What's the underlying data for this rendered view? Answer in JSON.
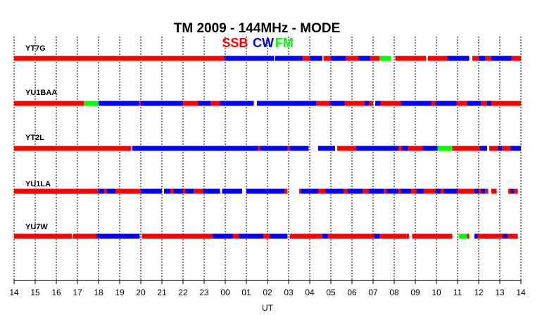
{
  "title": "TM 2009 - 144MHz - MODE",
  "legend": {
    "items": [
      {
        "label": "SSB",
        "color": "#ff0000"
      },
      {
        "label": "CW",
        "color": "#0000ff"
      },
      {
        "label": "FM",
        "color": "#00ff00"
      }
    ]
  },
  "chart_data": {
    "type": "timeline",
    "title": "TM 2009 - 144MHz - MODE",
    "xlabel": "UT",
    "x_ticks": [
      "14",
      "15",
      "16",
      "17",
      "18",
      "19",
      "20",
      "21",
      "22",
      "23",
      "00",
      "01",
      "02",
      "03",
      "04",
      "05",
      "06",
      "07",
      "08",
      "09",
      "10",
      "11",
      "12",
      "13",
      "14"
    ],
    "xlim_hours": [
      0,
      24
    ],
    "grid": "vertical-dashed",
    "legend_position": "top-center",
    "mode_colors": {
      "SSB": "#ff0000",
      "CW": "#0000ff",
      "FM": "#00ff00"
    },
    "stations": [
      {
        "name": "YT7G",
        "segments": [
          {
            "mode": "SSB",
            "start": 0.0,
            "end": 9.95
          },
          {
            "mode": "CW",
            "start": 9.95,
            "end": 12.3
          },
          {
            "mode": "CW",
            "start": 12.35,
            "end": 13.65
          },
          {
            "mode": "SSB",
            "start": 13.65,
            "end": 14.0
          },
          {
            "mode": "CW",
            "start": 14.0,
            "end": 14.6
          },
          {
            "mode": "SSB",
            "start": 14.65,
            "end": 15.0
          },
          {
            "mode": "CW",
            "start": 15.0,
            "end": 15.7
          },
          {
            "mode": "SSB",
            "start": 15.7,
            "end": 16.3
          },
          {
            "mode": "CW",
            "start": 16.3,
            "end": 16.85
          },
          {
            "mode": "SSB",
            "start": 16.85,
            "end": 17.3
          },
          {
            "mode": "FM",
            "start": 17.3,
            "end": 17.85
          },
          {
            "mode": "SSB",
            "start": 18.05,
            "end": 19.5
          },
          {
            "mode": "SSB",
            "start": 19.6,
            "end": 20.5
          },
          {
            "mode": "CW",
            "start": 20.5,
            "end": 21.55
          },
          {
            "mode": "SSB",
            "start": 21.7,
            "end": 22.0
          },
          {
            "mode": "CW",
            "start": 22.0,
            "end": 22.3
          },
          {
            "mode": "SSB",
            "start": 22.3,
            "end": 22.6
          },
          {
            "mode": "CW",
            "start": 22.6,
            "end": 23.55
          },
          {
            "mode": "SSB",
            "start": 23.55,
            "end": 24.0
          }
        ]
      },
      {
        "name": "YU1BAA",
        "segments": [
          {
            "mode": "SSB",
            "start": 0.0,
            "end": 3.3
          },
          {
            "mode": "FM",
            "start": 3.3,
            "end": 4.0
          },
          {
            "mode": "CW",
            "start": 4.0,
            "end": 5.9
          },
          {
            "mode": "SSB",
            "start": 5.9,
            "end": 6.0
          },
          {
            "mode": "CW",
            "start": 6.0,
            "end": 8.0
          },
          {
            "mode": "SSB",
            "start": 8.0,
            "end": 8.7
          },
          {
            "mode": "CW",
            "start": 8.7,
            "end": 9.3
          },
          {
            "mode": "SSB",
            "start": 9.3,
            "end": 9.75
          },
          {
            "mode": "CW",
            "start": 9.75,
            "end": 11.35
          },
          {
            "mode": "CW",
            "start": 11.5,
            "end": 14.3
          },
          {
            "mode": "SSB",
            "start": 14.3,
            "end": 14.95
          },
          {
            "mode": "CW",
            "start": 14.95,
            "end": 15.65
          },
          {
            "mode": "SSB",
            "start": 15.65,
            "end": 16.6
          },
          {
            "mode": "CW",
            "start": 16.6,
            "end": 16.8
          },
          {
            "mode": "SSB",
            "start": 16.8,
            "end": 17.0
          },
          {
            "mode": "CW",
            "start": 17.1,
            "end": 17.35
          },
          {
            "mode": "SSB",
            "start": 17.35,
            "end": 18.3
          },
          {
            "mode": "CW",
            "start": 18.3,
            "end": 19.75
          },
          {
            "mode": "SSB",
            "start": 19.75,
            "end": 19.95
          },
          {
            "mode": "CW",
            "start": 19.95,
            "end": 20.95
          },
          {
            "mode": "SSB",
            "start": 20.95,
            "end": 21.45
          },
          {
            "mode": "CW",
            "start": 21.45,
            "end": 22.1
          },
          {
            "mode": "SSB",
            "start": 22.1,
            "end": 22.4
          },
          {
            "mode": "CW",
            "start": 22.4,
            "end": 22.6
          },
          {
            "mode": "SSB",
            "start": 22.6,
            "end": 24.0
          }
        ]
      },
      {
        "name": "YT2L",
        "segments": [
          {
            "mode": "SSB",
            "start": 0.0,
            "end": 5.55
          },
          {
            "mode": "CW",
            "start": 5.6,
            "end": 11.55
          },
          {
            "mode": "SSB",
            "start": 11.55,
            "end": 11.65
          },
          {
            "mode": "CW",
            "start": 11.65,
            "end": 12.95
          },
          {
            "mode": "SSB",
            "start": 12.95,
            "end": 13.05
          },
          {
            "mode": "CW",
            "start": 13.05,
            "end": 13.95
          },
          {
            "mode": "CW",
            "start": 14.4,
            "end": 15.2
          },
          {
            "mode": "SSB",
            "start": 15.3,
            "end": 16.2
          },
          {
            "mode": "CW",
            "start": 16.2,
            "end": 18.2
          },
          {
            "mode": "SSB",
            "start": 18.2,
            "end": 18.35
          },
          {
            "mode": "CW",
            "start": 18.35,
            "end": 18.65
          },
          {
            "mode": "SSB",
            "start": 18.65,
            "end": 19.35
          },
          {
            "mode": "CW",
            "start": 19.35,
            "end": 20.05
          },
          {
            "mode": "FM",
            "start": 20.05,
            "end": 20.75
          },
          {
            "mode": "SSB",
            "start": 20.75,
            "end": 22.05
          },
          {
            "mode": "CW",
            "start": 22.05,
            "end": 22.4
          },
          {
            "mode": "SSB",
            "start": 22.5,
            "end": 22.9
          },
          {
            "mode": "CW",
            "start": 22.9,
            "end": 23.1
          },
          {
            "mode": "SSB",
            "start": 23.1,
            "end": 23.5
          },
          {
            "mode": "CW",
            "start": 23.5,
            "end": 24.0
          }
        ]
      },
      {
        "name": "YU1LA",
        "segments": [
          {
            "mode": "SSB",
            "start": 0.0,
            "end": 4.0
          },
          {
            "mode": "CW",
            "start": 4.0,
            "end": 4.25
          },
          {
            "mode": "SSB",
            "start": 4.25,
            "end": 4.4
          },
          {
            "mode": "CW",
            "start": 4.4,
            "end": 4.8
          },
          {
            "mode": "SSB",
            "start": 4.8,
            "end": 6.0
          },
          {
            "mode": "CW",
            "start": 6.0,
            "end": 7.0
          },
          {
            "mode": "CW",
            "start": 7.1,
            "end": 7.4
          },
          {
            "mode": "SSB",
            "start": 7.4,
            "end": 7.55
          },
          {
            "mode": "CW",
            "start": 7.55,
            "end": 8.0
          },
          {
            "mode": "SSB",
            "start": 8.0,
            "end": 8.1
          },
          {
            "mode": "CW",
            "start": 8.1,
            "end": 8.5
          },
          {
            "mode": "SSB",
            "start": 8.5,
            "end": 8.95
          },
          {
            "mode": "CW",
            "start": 8.95,
            "end": 9.75
          },
          {
            "mode": "CW",
            "start": 9.85,
            "end": 10.8
          },
          {
            "mode": "CW",
            "start": 11.0,
            "end": 12.8
          },
          {
            "mode": "SSB",
            "start": 12.8,
            "end": 12.95
          },
          {
            "mode": "SSB",
            "start": 13.5,
            "end": 13.6
          },
          {
            "mode": "CW",
            "start": 13.6,
            "end": 14.4
          },
          {
            "mode": "SSB",
            "start": 14.4,
            "end": 14.75
          },
          {
            "mode": "CW",
            "start": 14.75,
            "end": 15.6
          },
          {
            "mode": "SSB",
            "start": 15.6,
            "end": 15.8
          },
          {
            "mode": "CW",
            "start": 15.8,
            "end": 16.5
          },
          {
            "mode": "SSB",
            "start": 16.5,
            "end": 16.8
          },
          {
            "mode": "CW",
            "start": 16.8,
            "end": 17.5
          },
          {
            "mode": "SSB",
            "start": 17.5,
            "end": 17.65
          },
          {
            "mode": "CW",
            "start": 17.65,
            "end": 18.2
          },
          {
            "mode": "SSB",
            "start": 18.2,
            "end": 18.3
          },
          {
            "mode": "CW",
            "start": 18.3,
            "end": 18.8
          },
          {
            "mode": "SSB",
            "start": 18.8,
            "end": 19.05
          },
          {
            "mode": "CW",
            "start": 19.05,
            "end": 19.4
          },
          {
            "mode": "SSB",
            "start": 19.4,
            "end": 19.95
          },
          {
            "mode": "CW",
            "start": 19.95,
            "end": 20.2
          },
          {
            "mode": "SSB",
            "start": 20.2,
            "end": 20.35
          },
          {
            "mode": "CW",
            "start": 20.35,
            "end": 21.0
          },
          {
            "mode": "SSB",
            "start": 21.0,
            "end": 21.8
          },
          {
            "mode": "CW",
            "start": 21.8,
            "end": 22.0
          },
          {
            "mode": "SSB",
            "start": 22.0,
            "end": 22.1
          },
          {
            "mode": "CW",
            "start": 22.1,
            "end": 22.3
          },
          {
            "mode": "SSB",
            "start": 22.3,
            "end": 22.45
          },
          {
            "mode": "SSB",
            "start": 22.6,
            "end": 22.85
          },
          {
            "mode": "SSB",
            "start": 23.4,
            "end": 23.5
          },
          {
            "mode": "CW",
            "start": 23.5,
            "end": 23.65
          },
          {
            "mode": "SSB",
            "start": 23.65,
            "end": 23.85
          }
        ]
      },
      {
        "name": "YU7W",
        "segments": [
          {
            "mode": "SSB",
            "start": 0.0,
            "end": 2.75
          },
          {
            "mode": "SSB",
            "start": 2.8,
            "end": 3.9
          },
          {
            "mode": "CW",
            "start": 3.9,
            "end": 5.95
          },
          {
            "mode": "SSB",
            "start": 6.05,
            "end": 9.4
          },
          {
            "mode": "CW",
            "start": 9.4,
            "end": 10.35
          },
          {
            "mode": "SSB",
            "start": 10.35,
            "end": 10.65
          },
          {
            "mode": "CW",
            "start": 10.65,
            "end": 11.8
          },
          {
            "mode": "SSB",
            "start": 11.8,
            "end": 12.1
          },
          {
            "mode": "CW",
            "start": 12.1,
            "end": 12.95
          },
          {
            "mode": "SSB",
            "start": 13.05,
            "end": 14.6
          },
          {
            "mode": "CW",
            "start": 14.6,
            "end": 14.85
          },
          {
            "mode": "SSB",
            "start": 14.85,
            "end": 17.05
          },
          {
            "mode": "CW",
            "start": 17.05,
            "end": 17.3
          },
          {
            "mode": "SSB",
            "start": 17.3,
            "end": 18.7
          },
          {
            "mode": "SSB",
            "start": 18.85,
            "end": 20.75
          },
          {
            "mode": "FM",
            "start": 21.05,
            "end": 21.45
          },
          {
            "mode": "SSB",
            "start": 21.45,
            "end": 21.55
          },
          {
            "mode": "CW",
            "start": 21.8,
            "end": 21.95
          },
          {
            "mode": "SSB",
            "start": 21.95,
            "end": 23.15
          },
          {
            "mode": "CW",
            "start": 23.15,
            "end": 23.35
          },
          {
            "mode": "SSB",
            "start": 23.35,
            "end": 23.85
          }
        ]
      }
    ]
  }
}
